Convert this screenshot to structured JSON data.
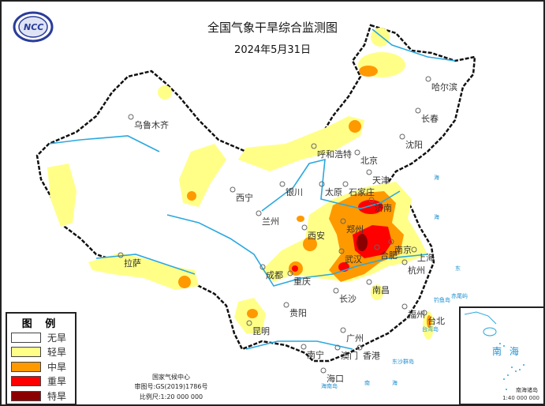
{
  "header": {
    "title": "全国气象干旱综合监测图",
    "date": "2024年5月31日",
    "logo_text": "NCC"
  },
  "legend": {
    "title": "图 例",
    "items": [
      {
        "label": "无旱",
        "color": "#ffffff"
      },
      {
        "label": "轻旱",
        "color": "#ffff88"
      },
      {
        "label": "中旱",
        "color": "#ff9900"
      },
      {
        "label": "重旱",
        "color": "#ff0000"
      },
      {
        "label": "特旱",
        "color": "#8b0000"
      }
    ]
  },
  "credits": {
    "agency": "国家气候中心",
    "review": "审图号:GS(2019)1786号",
    "scale": "比例尺:1:20 000 000"
  },
  "inset": {
    "label": "南 海",
    "islands": "南海诸岛",
    "scale": "1:40 000 000"
  },
  "cities": [
    "哈尔滨",
    "长春",
    "沈阳",
    "乌鲁木齐",
    "呼和浩特",
    "北京",
    "天津",
    "太原",
    "石家庄",
    "银川",
    "西宁",
    "兰州",
    "济南",
    "郑州",
    "西安",
    "合肥",
    "南京",
    "上海",
    "杭州",
    "武汉",
    "成都",
    "重庆",
    "拉萨",
    "长沙",
    "南昌",
    "贵阳",
    "昆明",
    "福州",
    "台北",
    "广州",
    "南宁",
    "澳门",
    "香港",
    "海口"
  ],
  "small_labels": {
    "diaoyu": "钓鱼岛",
    "chiwei": "赤尾屿",
    "taiwan": "台湾岛",
    "dongsha": "东沙群岛",
    "hainan": "海南岛"
  },
  "seas": [
    "海",
    "海",
    "海",
    "东",
    "南",
    "海"
  ]
}
